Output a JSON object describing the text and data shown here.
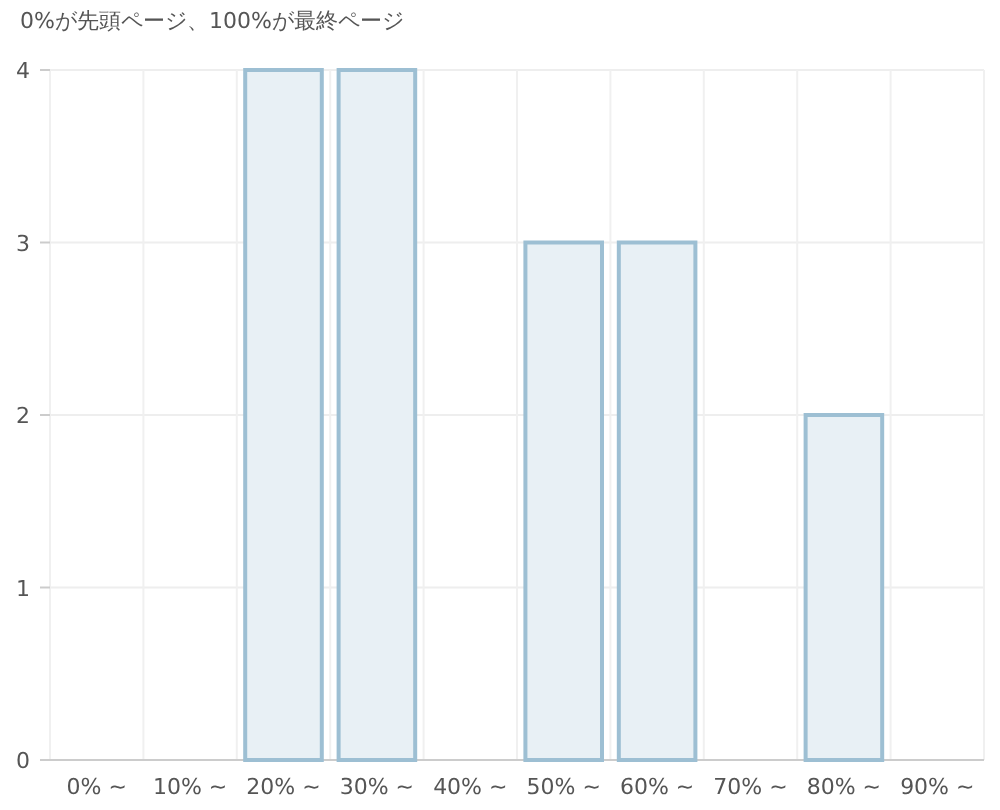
{
  "chart_data": {
    "type": "bar",
    "title": "0%が先頭ページ、100%が最終ページ",
    "categories": [
      "0% ~",
      "10% ~",
      "20% ~",
      "30% ~",
      "40% ~",
      "50% ~",
      "60% ~",
      "70% ~",
      "80% ~",
      "90% ~"
    ],
    "series": [
      {
        "color": "#e8f0f5",
        "values": [
          0,
          0,
          4,
          4,
          0,
          3,
          3,
          0,
          2,
          0
        ]
      }
    ],
    "ylim": [
      0,
      4
    ],
    "yticks": [
      0,
      1,
      2,
      3,
      4
    ],
    "grid": true
  }
}
